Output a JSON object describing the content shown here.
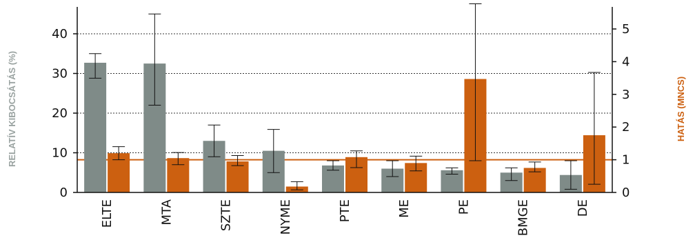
{
  "chart_data": {
    "type": "bar",
    "title": "",
    "categories": [
      "ELTE",
      "MTA",
      "SZTE",
      "NYME",
      "PTE",
      "ME",
      "PE",
      "BMGE",
      "DE"
    ],
    "series": [
      {
        "name": "RELATÍV KIBOCSÁTÁS (%)",
        "axis": "left",
        "color": "#7f8b88",
        "values": [
          32.7,
          32.5,
          13.0,
          10.5,
          6.8,
          6.0,
          5.6,
          5.0,
          4.4
        ],
        "err_low": [
          28.8,
          22.0,
          9.0,
          5.0,
          5.6,
          4.0,
          4.6,
          3.0,
          0.8
        ],
        "err_high": [
          35.0,
          45.0,
          17.0,
          15.9,
          8.0,
          8.0,
          6.2,
          6.2,
          8.0
        ]
      },
      {
        "name": "HATÁS (MNCS)",
        "axis": "right",
        "color": "#cc6010",
        "values": [
          1.2,
          1.05,
          0.95,
          0.18,
          1.08,
          0.9,
          3.47,
          0.75,
          1.75
        ],
        "err_low": [
          1.0,
          0.85,
          0.82,
          0.08,
          0.76,
          0.66,
          0.97,
          0.63,
          0.25
        ],
        "err_high": [
          1.4,
          1.22,
          1.13,
          0.33,
          1.27,
          1.11,
          5.77,
          0.93,
          3.67
        ]
      }
    ],
    "reference_line": {
      "axis": "right",
      "value": 1.0,
      "color": "#cc6010"
    },
    "ylabel": "RELATÍV KIBOCSÁTÁS (%)",
    "ylabel_right": "HATÁS (MNCS)",
    "ylabel_color": "#9aa3a1",
    "ylabel_right_color": "#cc6010",
    "ylim": [
      0,
      48
    ],
    "ylim_right": [
      0,
      5.78
    ],
    "yticks": [
      0,
      10,
      20,
      30,
      40
    ],
    "yticks_right": [
      0,
      1,
      2,
      3,
      4,
      5
    ],
    "grid": "horizontal dotted at left-axis ticks",
    "legend": "none"
  }
}
